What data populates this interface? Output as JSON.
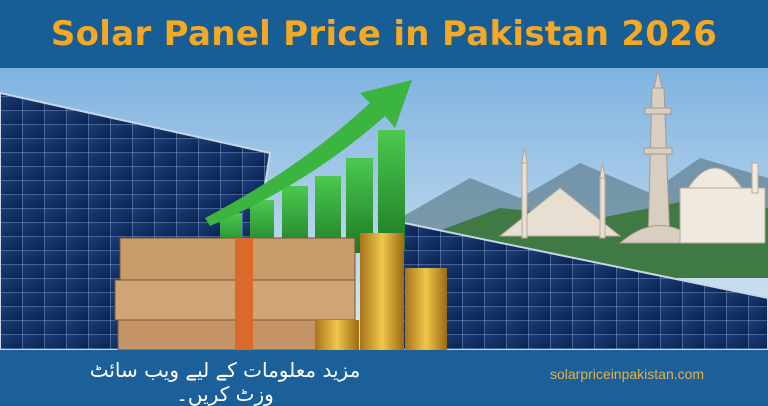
{
  "header": {
    "title": "Solar Panel Price in Pakistan 2026"
  },
  "footer": {
    "urdu_text": "مزید معلومات کے لیے ویب سائٹ وزٹ کریں۔",
    "website": "solarpriceinpakistan.com"
  },
  "colors": {
    "header_bg": "#175d96",
    "title": "#f4a823",
    "footer_bg": "#1c609b",
    "website_text": "#e8b043",
    "growth_green": "#2fa83a"
  },
  "scene": {
    "elements": [
      "solar-panels",
      "growth-bar-chart-with-arrow",
      "rupee-banknote-stacks",
      "gold-coin-stacks",
      "minar-e-pakistan",
      "faisal-mosque",
      "mountains"
    ]
  }
}
